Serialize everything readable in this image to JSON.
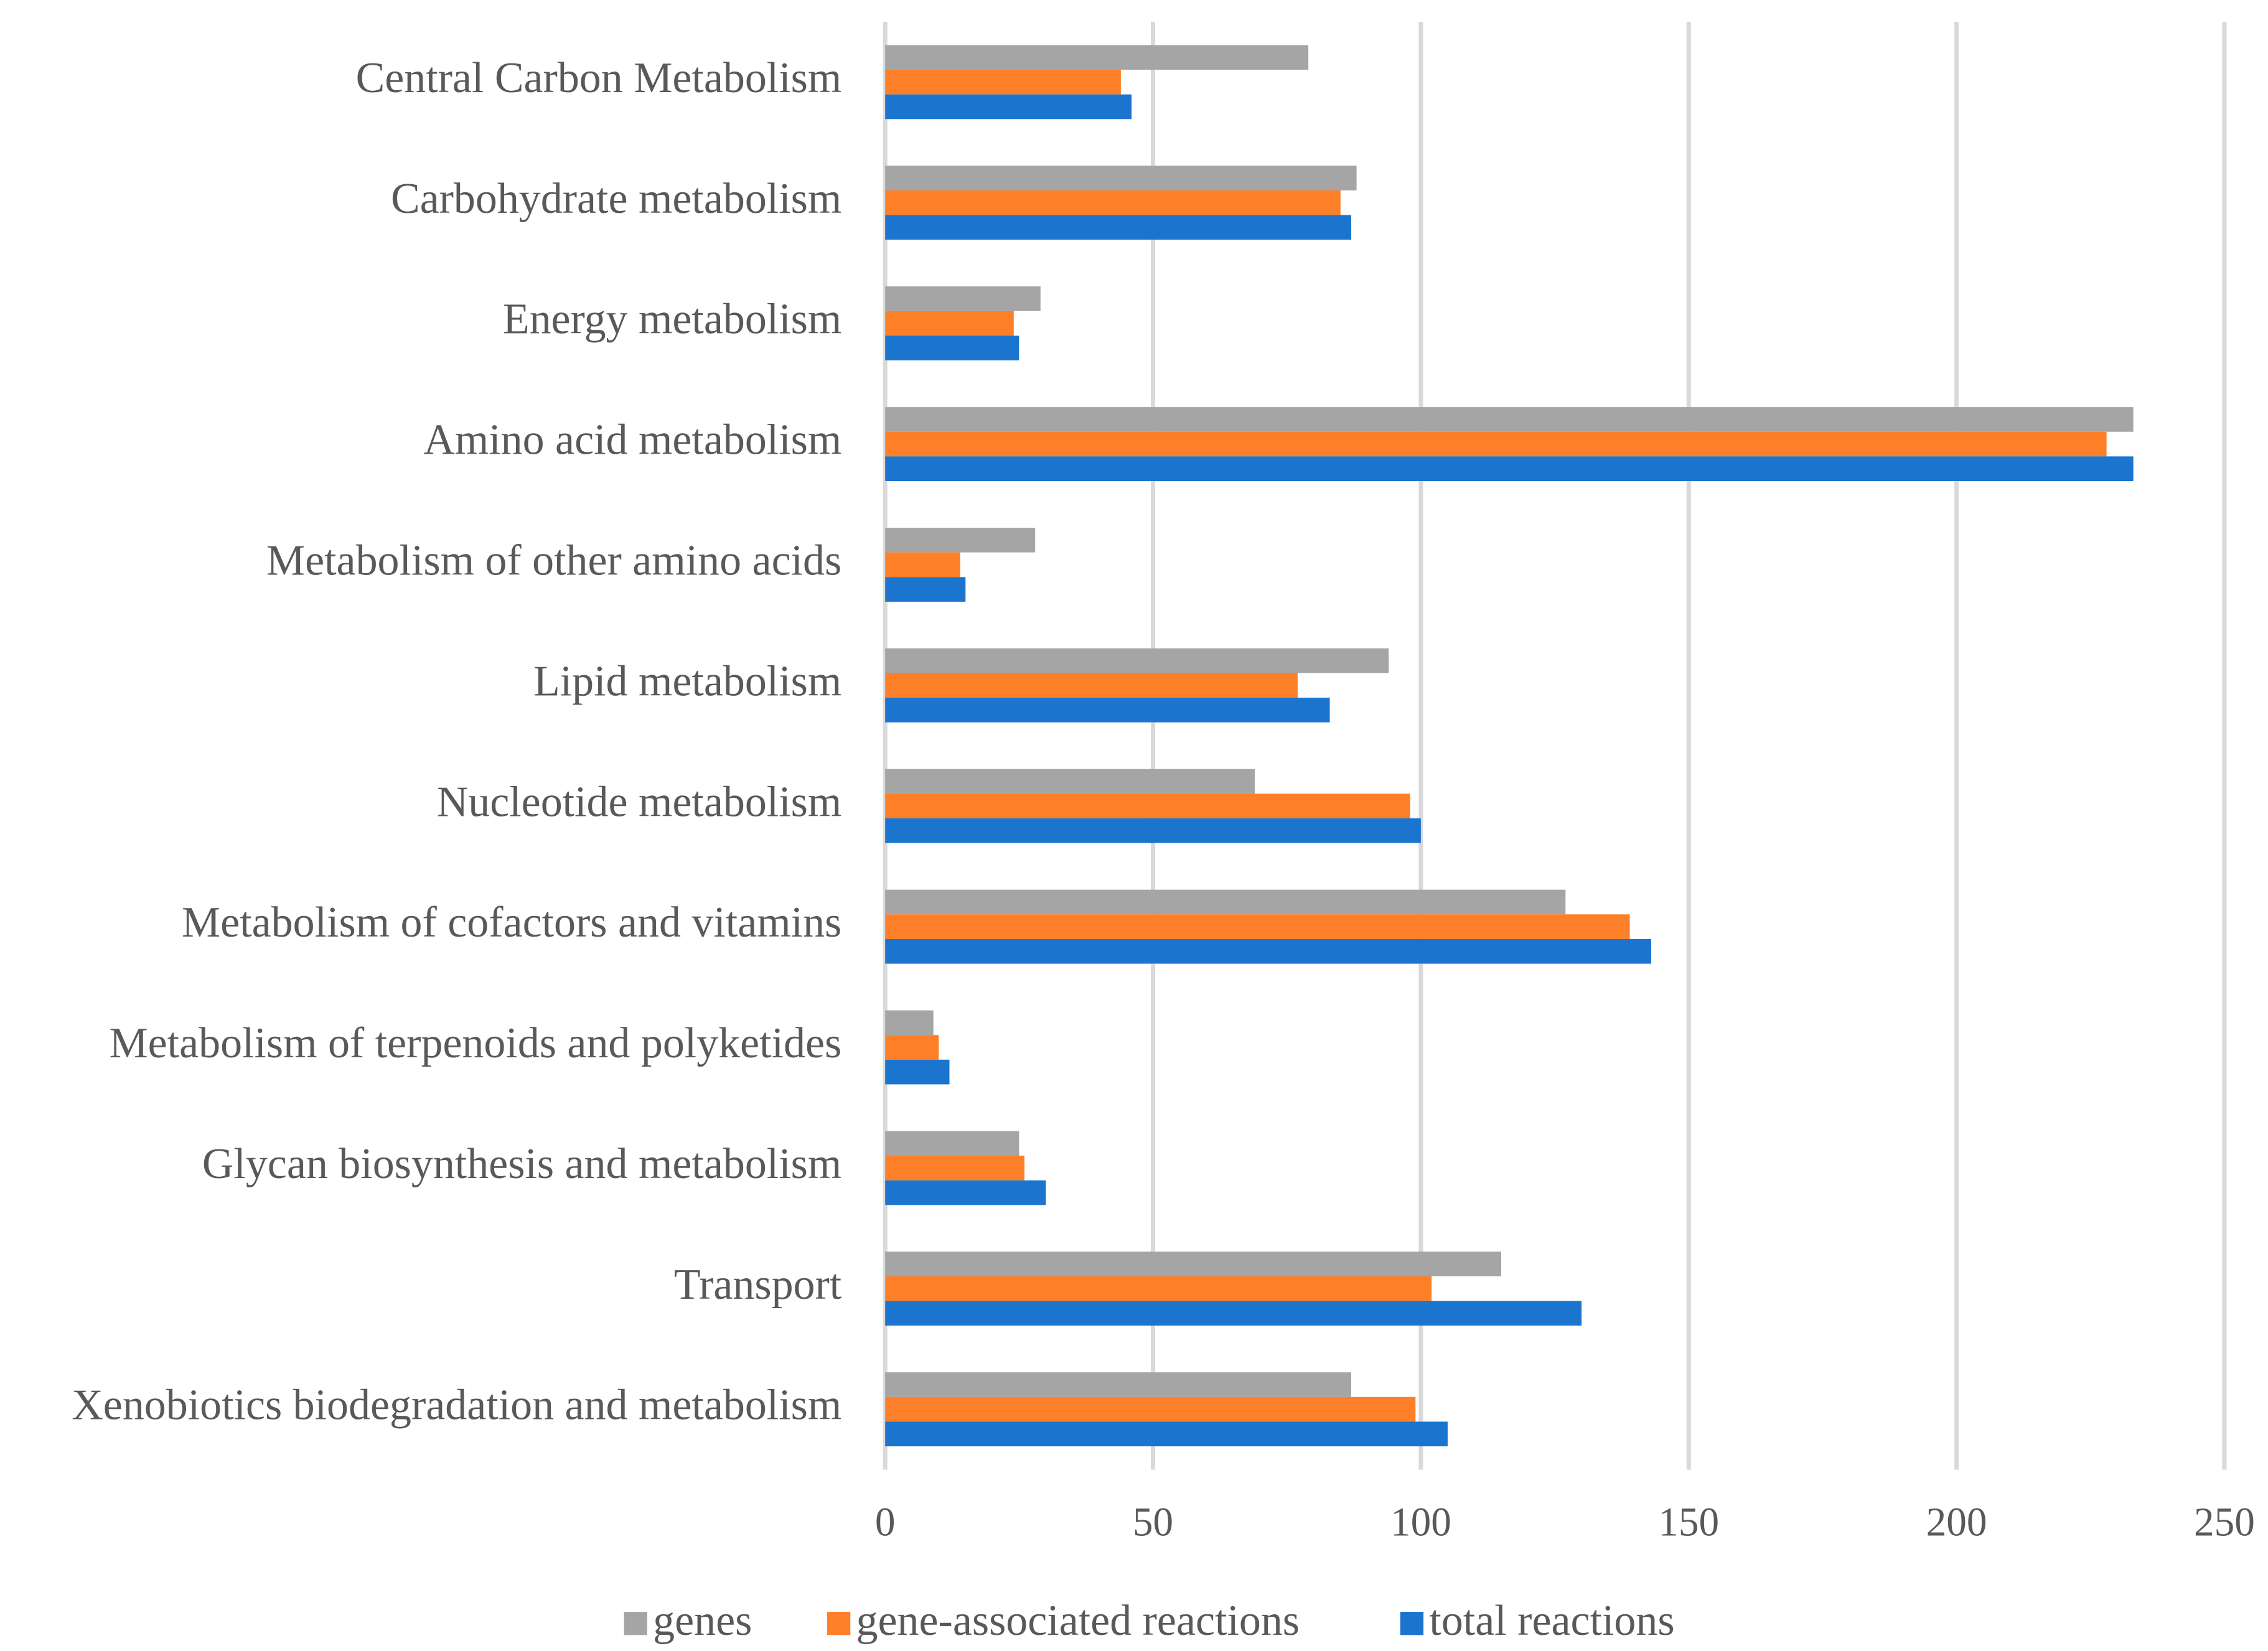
{
  "chart_data": {
    "type": "hbar",
    "categories": [
      "Central Carbon Metabolism",
      "Carbohydrate metabolism",
      "Energy metabolism",
      "Amino acid metabolism",
      "Metabolism of other amino acids",
      "Lipid metabolism",
      "Nucleotide metabolism",
      "Metabolism of cofactors and vitamins",
      "Metabolism of terpenoids and polyketides",
      "Glycan biosynthesis and metabolism",
      "Transport",
      "Xenobiotics biodegradation and metabolism"
    ],
    "series": [
      {
        "name": "genes",
        "color": "#a5a5a5",
        "values": [
          79,
          88,
          29,
          233,
          28,
          94,
          69,
          127,
          9,
          25,
          115,
          87
        ]
      },
      {
        "name": "gene-associated reactions",
        "color": "#fd7f27",
        "values": [
          44,
          85,
          24,
          228,
          14,
          77,
          98,
          139,
          10,
          26,
          102,
          99
        ]
      },
      {
        "name": "total reactions",
        "color": "#1b75cf",
        "values": [
          46,
          87,
          25,
          233,
          15,
          83,
          100,
          143,
          12,
          30,
          130,
          105
        ]
      }
    ],
    "xlim": [
      0,
      250
    ],
    "xticks": [
      0,
      50,
      100,
      150,
      200,
      250
    ],
    "grid": true,
    "legend": "bottom"
  }
}
